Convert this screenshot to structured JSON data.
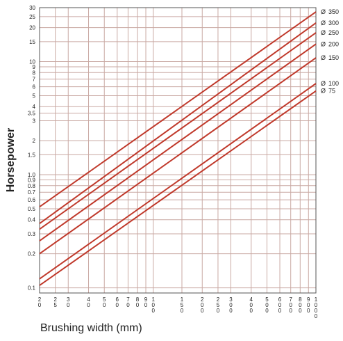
{
  "chart_data": {
    "type": "line",
    "title": "",
    "xlabel": "Brushing width (mm)",
    "ylabel": "Horsepower",
    "x_scale": "log",
    "y_scale": "log",
    "xlim": [
      20,
      1000
    ],
    "ylim": [
      0.09,
      30
    ],
    "grid": true,
    "legend": "series labels at right end of each line",
    "colors": {
      "line": "#c0392b",
      "grid": "#c9a9a3",
      "axis": "#555555",
      "label_mark": "#333333"
    },
    "x_ticks": [
      {
        "value": 20,
        "label": "20"
      },
      {
        "value": 25,
        "label": "25"
      },
      {
        "value": 30,
        "label": "30"
      },
      {
        "value": 40,
        "label": "40"
      },
      {
        "value": 50,
        "label": "50"
      },
      {
        "value": 60,
        "label": "60"
      },
      {
        "value": 70,
        "label": "70"
      },
      {
        "value": 80,
        "label": "80"
      },
      {
        "value": 90,
        "label": "90"
      },
      {
        "value": 100,
        "label": "100"
      },
      {
        "value": 150,
        "label": "150"
      },
      {
        "value": 200,
        "label": "200"
      },
      {
        "value": 250,
        "label": "250"
      },
      {
        "value": 300,
        "label": "300"
      },
      {
        "value": 400,
        "label": "400"
      },
      {
        "value": 500,
        "label": "500"
      },
      {
        "value": 600,
        "label": "600"
      },
      {
        "value": 700,
        "label": "700"
      },
      {
        "value": 800,
        "label": "800"
      },
      {
        "value": 900,
        "label": "900"
      },
      {
        "value": 1000,
        "label": "1000"
      }
    ],
    "y_ticks": [
      {
        "value": 0.1,
        "label": "0.1"
      },
      {
        "value": 0.2,
        "label": "0.2"
      },
      {
        "value": 0.3,
        "label": "0.3"
      },
      {
        "value": 0.4,
        "label": "0.4"
      },
      {
        "value": 0.5,
        "label": "0.5"
      },
      {
        "value": 0.6,
        "label": "0.6"
      },
      {
        "value": 0.7,
        "label": "0.7"
      },
      {
        "value": 0.8,
        "label": "0.8"
      },
      {
        "value": 0.9,
        "label": "0.9"
      },
      {
        "value": 1.0,
        "label": "1.0"
      },
      {
        "value": 1.5,
        "label": "1.5"
      },
      {
        "value": 2,
        "label": "2"
      },
      {
        "value": 3,
        "label": "3"
      },
      {
        "value": 3.5,
        "label": "3.5"
      },
      {
        "value": 4,
        "label": "4"
      },
      {
        "value": 5,
        "label": "5"
      },
      {
        "value": 6,
        "label": "6"
      },
      {
        "value": 7,
        "label": "7"
      },
      {
        "value": 8,
        "label": "8"
      },
      {
        "value": 9,
        "label": "9"
      },
      {
        "value": 10,
        "label": "10"
      },
      {
        "value": 15,
        "label": "15"
      },
      {
        "value": 20,
        "label": "20"
      },
      {
        "value": 25,
        "label": "25"
      },
      {
        "value": 30,
        "label": "30"
      }
    ],
    "series": [
      {
        "name": "350",
        "symbol": "Ø",
        "x": [
          20,
          1000
        ],
        "y": [
          0.52,
          27.5
        ]
      },
      {
        "name": "300",
        "symbol": "Ø",
        "x": [
          20,
          1000
        ],
        "y": [
          0.37,
          22.0
        ]
      },
      {
        "name": "250",
        "symbol": "Ø",
        "x": [
          20,
          1000
        ],
        "y": [
          0.33,
          18.0
        ]
      },
      {
        "name": "200",
        "symbol": "Ø",
        "x": [
          20,
          1000
        ],
        "y": [
          0.26,
          14.3
        ]
      },
      {
        "name": "150",
        "symbol": "Ø",
        "x": [
          20,
          1000
        ],
        "y": [
          0.2,
          10.8
        ]
      },
      {
        "name": "100",
        "symbol": "Ø",
        "x": [
          20,
          1000
        ],
        "y": [
          0.12,
          6.4
        ]
      },
      {
        "name": "75",
        "symbol": "Ø",
        "x": [
          20,
          1000
        ],
        "y": [
          0.105,
          5.5
        ]
      }
    ]
  }
}
